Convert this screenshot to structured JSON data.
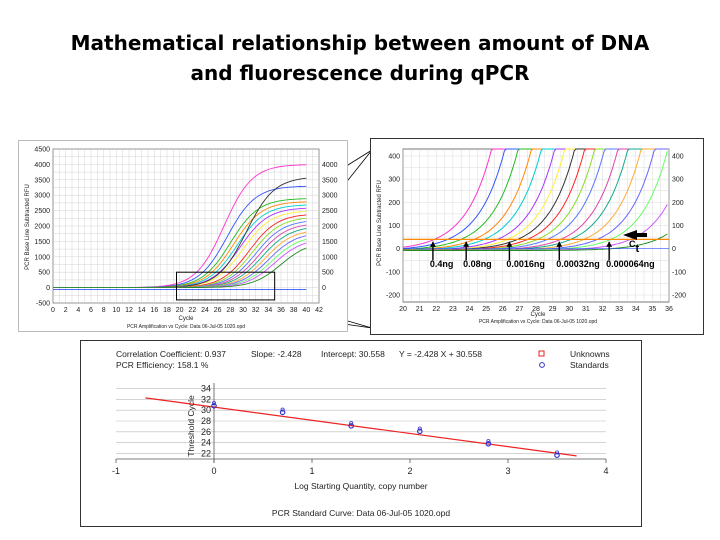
{
  "title": {
    "line1": "Mathematical relationship between amount of DNA",
    "line2": "and fluorescence during qPCR"
  },
  "amplification": {
    "xlabel": "Cycle",
    "ylabel": "PCR Base Line Subtracted RFU",
    "footer": "PCR Amplification vs Cycle: Data 06-Jul-05 1020.opd",
    "xticks": [
      0,
      2,
      4,
      6,
      8,
      10,
      12,
      14,
      16,
      18,
      20,
      22,
      24,
      26,
      28,
      30,
      32,
      34,
      36,
      38,
      40,
      42
    ],
    "yticks": [
      -500,
      0,
      500,
      1000,
      1500,
      2000,
      2500,
      3000,
      3500,
      4000,
      4500
    ],
    "rticks": [
      0,
      500,
      1000,
      1500,
      2000,
      2500,
      3000,
      3500,
      4000
    ],
    "xlim": [
      0,
      42
    ],
    "ylim": [
      -500,
      4500
    ],
    "colors": [
      "#ff33cc",
      "#3355ff",
      "#22bb22",
      "#ff8800",
      "#00cccc",
      "#aa33ff",
      "#ffee33",
      "#333333",
      "#ff2222",
      "#88dd22",
      "#5577ff",
      "#dd44aa",
      "#11aa88",
      "#ffaa33",
      "#6666ff",
      "#66ff66",
      "#cc55ff",
      "#228b22"
    ]
  },
  "zoom": {
    "xlabel": "Cycle",
    "ylabel": "PCR Base Line Subtracted RFU",
    "footer": "PCR Amplification vs Cycle: Data 06-Jul-05 1020.opd",
    "xticks": [
      20,
      21,
      22,
      23,
      24,
      25,
      26,
      27,
      28,
      29,
      30,
      31,
      32,
      33,
      34,
      35,
      36
    ],
    "yticks": [
      -200,
      -100,
      0,
      100,
      200,
      300,
      400
    ],
    "rticks": [
      -200,
      -100,
      0,
      100,
      200,
      300,
      400
    ],
    "xlim": [
      20,
      36
    ],
    "ylim": [
      -230,
      430
    ],
    "threshold": 40,
    "labels": [
      {
        "text": "0.4ng",
        "cycle": 21.8
      },
      {
        "text": "0.08ng",
        "cycle": 23.8
      },
      {
        "text": "0.0016ng",
        "cycle": 26.4
      },
      {
        "text": "0.00032ng",
        "cycle": 29.4
      },
      {
        "text": "0.000064ng",
        "cycle": 32.4
      }
    ],
    "ct_main": "C",
    "ct_sub": "t"
  },
  "chart_data": {
    "type": "scatter",
    "title": "PCR Standard Curve: Data 06-Jul-05 1020.opd",
    "xlabel": "Log Starting Quantity, copy number",
    "ylabel": "Threshold Cycle",
    "xlim": [
      -1,
      4
    ],
    "ylim": [
      21,
      35
    ],
    "xticks": [
      -1,
      0,
      1,
      2,
      3,
      4
    ],
    "yticks": [
      22,
      24,
      26,
      28,
      30,
      32,
      34
    ],
    "stats": {
      "correlation": "Correlation Coefficient: 0.937",
      "slope": "Slope: -2.428",
      "intercept": "Intercept: 30.558",
      "equation": "Y = -2.428 X + 30.558",
      "efficiency": "PCR Efficiency: 158.1 %"
    },
    "regression": {
      "slope": -2.428,
      "intercept": 30.558,
      "x_range": [
        -0.7,
        3.7
      ]
    },
    "legend": {
      "position": "top-right",
      "items": [
        "Unknowns",
        "Standards"
      ]
    },
    "series": [
      {
        "name": "Standards",
        "x": [
          0,
          0.7,
          1.4,
          2.1,
          2.8,
          3.5
        ],
        "y": [
          30.8,
          29.6,
          27.1,
          26.1,
          23.8,
          21.7
        ]
      },
      {
        "name": "Unknowns",
        "x": [],
        "y": []
      }
    ],
    "colors": {
      "regression": "#ee2222",
      "unknowns": "#ee2222",
      "standards": "#3333cc"
    },
    "grid": true
  }
}
